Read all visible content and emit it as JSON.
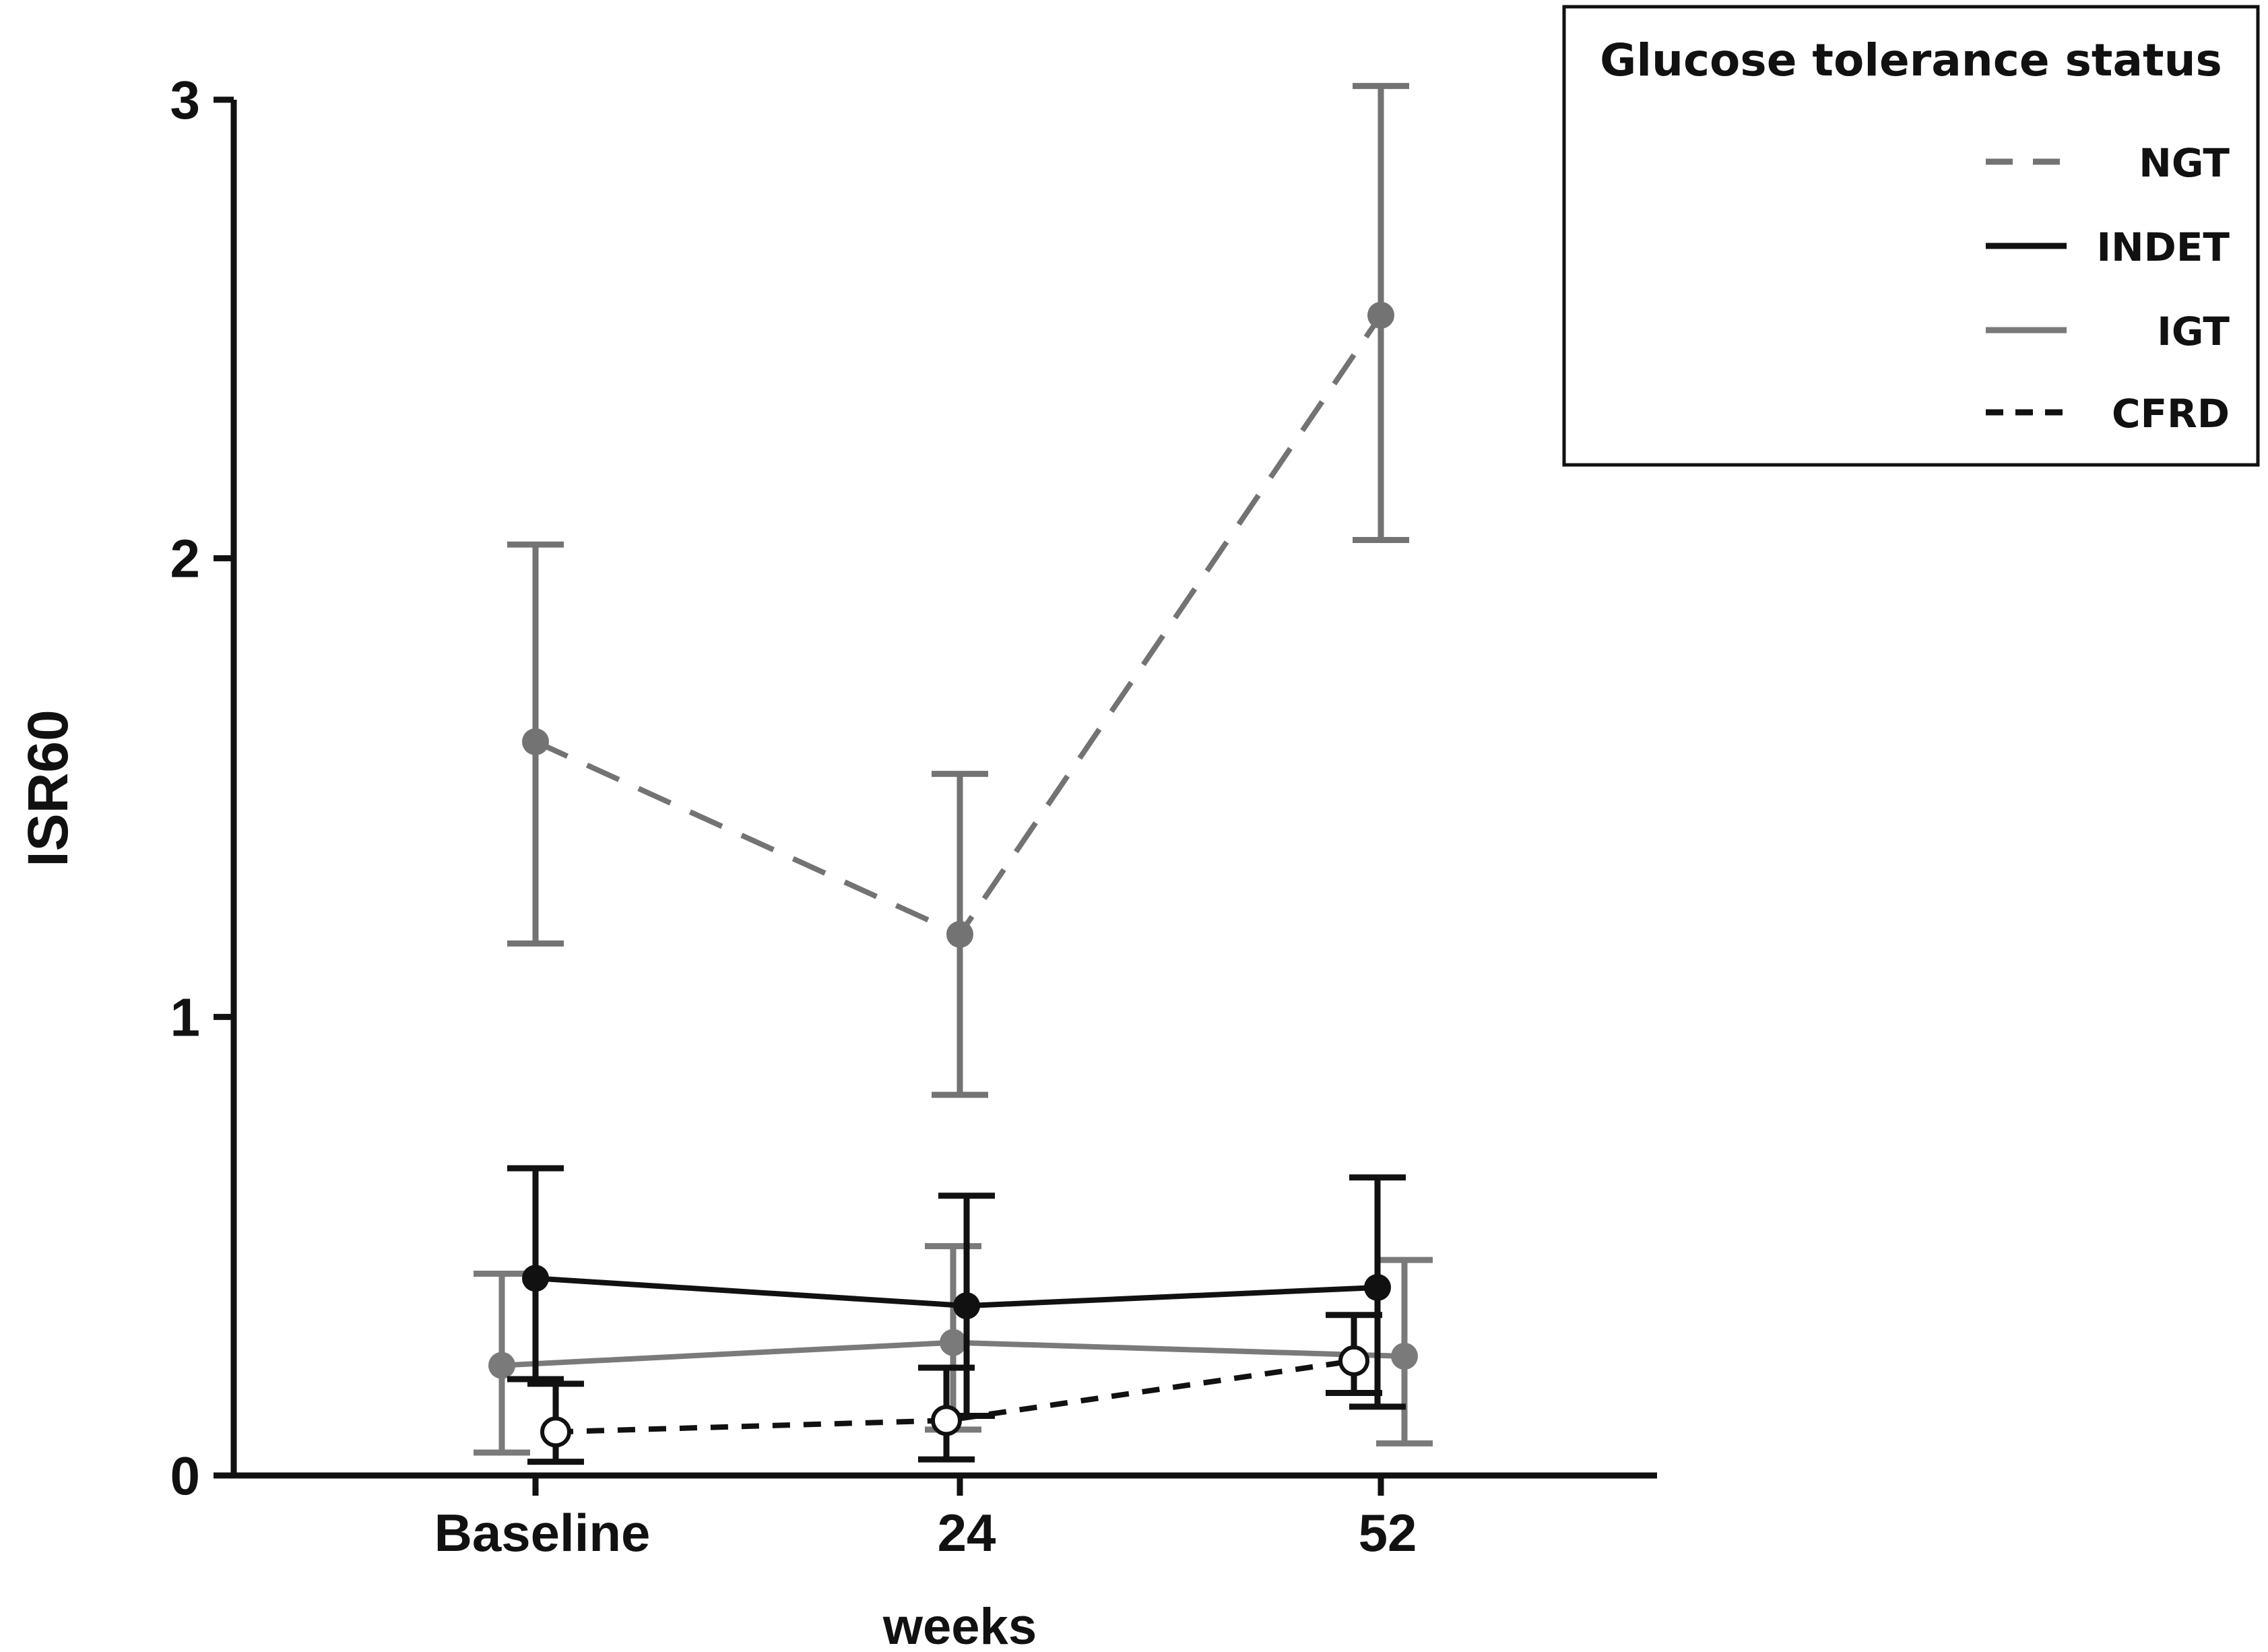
{
  "chart_data": {
    "type": "line",
    "title": "",
    "xlabel": "weeks",
    "ylabel": "ISR60",
    "categories": [
      "Baseline",
      "24",
      "52"
    ],
    "ylim": [
      0,
      3
    ],
    "yticks": [
      0,
      1,
      2,
      3
    ],
    "grid": false,
    "legend": {
      "title": "Glucose tolerance status",
      "placement": "top-right",
      "entries": [
        "NGT",
        "INDET",
        "IGT",
        "CFRD"
      ]
    },
    "series": [
      {
        "name": "NGT",
        "color": "#737373",
        "dash": "long",
        "marker": "filled",
        "values": [
          1.6,
          1.18,
          2.53
        ],
        "lower": [
          1.16,
          0.83,
          2.04
        ],
        "upper": [
          2.03,
          1.53,
          3.03
        ]
      },
      {
        "name": "INDET",
        "color": "#111111",
        "dash": "solid",
        "marker": "filled",
        "values": [
          0.43,
          0.37,
          0.41
        ],
        "lower": [
          0.21,
          0.13,
          0.15
        ],
        "upper": [
          0.67,
          0.61,
          0.65
        ]
      },
      {
        "name": "IGT",
        "color": "#7a7a7a",
        "dash": "solid",
        "marker": "filled",
        "values": [
          0.24,
          0.29,
          0.26
        ],
        "lower": [
          0.05,
          0.1,
          0.07
        ],
        "upper": [
          0.44,
          0.5,
          0.47
        ]
      },
      {
        "name": "CFRD",
        "color": "#111111",
        "dash": "short",
        "marker": "open",
        "values": [
          0.095,
          0.12,
          0.25
        ],
        "lower": [
          0.03,
          0.035,
          0.18
        ],
        "upper": [
          0.2,
          0.235,
          0.35
        ]
      }
    ]
  }
}
